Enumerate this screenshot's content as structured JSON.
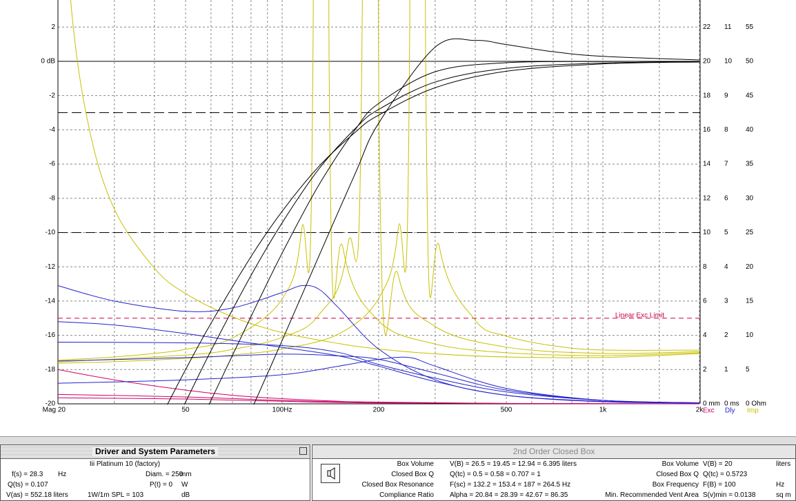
{
  "chart_data": {
    "type": "line",
    "xscale": "log",
    "xlim": [
      20,
      2000
    ],
    "xticks": [
      {
        "value": 20,
        "label": "Mag 20"
      },
      50,
      {
        "value": 100,
        "label": "100Hz"
      },
      200,
      500,
      {
        "value": 1000,
        "label": "1k"
      },
      {
        "value": 2000,
        "label": "2k"
      }
    ],
    "xminor": [
      30,
      40,
      60,
      70,
      80,
      90,
      300,
      400,
      600,
      700,
      800,
      900,
      1500
    ],
    "ylim": [
      -20,
      3.58
    ],
    "yticks": [
      -20,
      -18,
      -16,
      -14,
      -12,
      -10,
      -8,
      -6,
      -4,
      -2,
      {
        "value": 0,
        "label": "0 dB"
      },
      2
    ],
    "y2lim": [
      0,
      23.58
    ],
    "y2ticks": [
      {
        "value": 0,
        "label": "0 mm"
      },
      2,
      4,
      6,
      8,
      10,
      12,
      14,
      16,
      18,
      20,
      22
    ],
    "y3lim": [
      0,
      11.79
    ],
    "y3ticks": [
      {
        "value": 0,
        "label": "0 ms"
      },
      1,
      2,
      3,
      4,
      5,
      6,
      7,
      8,
      9,
      10,
      11
    ],
    "y4lim": [
      0,
      58.95
    ],
    "y4ticks": [
      {
        "value": 0,
        "label": "0 Ohm"
      },
      5,
      10,
      15,
      20,
      25,
      30,
      35,
      40,
      45,
      50,
      55
    ],
    "grid": true,
    "hlines": [
      {
        "value": 0,
        "style": "solid"
      },
      {
        "value": -3,
        "style": "dash"
      },
      {
        "value": -10,
        "style": "dash"
      }
    ],
    "exc_limit": {
      "value": 5,
      "axis": "y2",
      "label": "Linear Exc Limit",
      "color": "#cc0044"
    },
    "legend": [
      {
        "label": "Exc",
        "color": "#cc0066"
      },
      {
        "label": "Dly",
        "color": "#2222cc"
      },
      {
        "label": "Imp",
        "color": "#c8c000"
      }
    ],
    "series": [
      {
        "axis": "y",
        "color": "#000000",
        "x": [
          40,
          50,
          60,
          80,
          100,
          130,
          170,
          200,
          300,
          500,
          1000,
          2000
        ],
        "values": [
          -21.5,
          -18.0,
          -15.3,
          -11.4,
          -8.76,
          -6.15,
          -4.1,
          -3.14,
          -1.54,
          -0.58,
          -0.15,
          -0.04
        ]
      },
      {
        "axis": "y",
        "color": "#000000",
        "x": [
          45,
          50,
          60,
          80,
          100,
          130,
          170,
          200,
          300,
          500,
          1000,
          2000
        ],
        "values": [
          -21.6,
          -19.9,
          -16.9,
          -12.5,
          -9.43,
          -6.3,
          -3.88,
          -2.81,
          -1.21,
          -0.41,
          -0.1,
          -0.02
        ]
      },
      {
        "axis": "y",
        "color": "#000000",
        "x": [
          50,
          60,
          80,
          100,
          130,
          170,
          200,
          300,
          500,
          1000,
          2000
        ],
        "values": [
          -22.9,
          -19.8,
          -14.9,
          -11.2,
          -7.24,
          -3.92,
          -2.46,
          -0.61,
          -0.08,
          -0.01,
          0
        ]
      },
      {
        "axis": "y",
        "color": "#000000",
        "x": [
          75,
          80,
          100,
          130,
          170,
          200,
          300,
          400,
          500,
          700,
          1000,
          2000
        ],
        "values": [
          -21.5,
          -20.4,
          -16.3,
          -11.4,
          -6.44,
          -3.61,
          0.83,
          1.22,
          0.98,
          0.56,
          0.29,
          0.08
        ]
      },
      {
        "axis": "y4",
        "color": "#c8c000",
        "x": [
          20,
          22,
          25,
          30,
          40,
          50,
          70,
          100,
          150,
          200,
          300,
          500,
          1000,
          2000
        ],
        "values": [
          88.3,
          58,
          40.3,
          28.4,
          19.8,
          16.1,
          12.7,
          10.4,
          8.8,
          8.0,
          7.3,
          6.84,
          6.77,
          7.33
        ]
      },
      {
        "axis": "y4",
        "color": "#c8c000",
        "x": [
          20,
          30,
          40,
          50,
          70,
          100,
          115,
          125,
          132,
          140,
          155,
          200,
          300,
          500,
          1000,
          2000
        ],
        "values": [
          6.37,
          6.84,
          7.36,
          7.96,
          9.6,
          15.3,
          25.4,
          55.6,
          405.6,
          51.6,
          22.6,
          12.1,
          8.74,
          7.46,
          7.04,
          7.46
        ]
      },
      {
        "axis": "y4",
        "color": "#c8c000",
        "x": [
          20,
          50,
          70,
          100,
          130,
          160,
          178,
          187,
          200,
          230,
          300,
          500,
          1000,
          2000
        ],
        "values": [
          6.11,
          7.12,
          7.94,
          9.7,
          12.95,
          23.0,
          60.4,
          405.6,
          46.1,
          18.8,
          11.3,
          8.28,
          7.36,
          7.62
        ]
      },
      {
        "axis": "y4",
        "color": "#c8c000",
        "x": [
          20,
          30,
          50,
          70,
          100,
          150,
          200,
          230,
          250,
          264,
          280,
          310,
          400,
          500,
          700,
          1000,
          2000
        ],
        "values": [
          5.94,
          6.15,
          6.62,
          7.12,
          8.0,
          10.2,
          15.4,
          25.5,
          55.7,
          405.7,
          51.7,
          22.7,
          12.2,
          9.9,
          8.47,
          7.86,
          7.84
        ]
      },
      {
        "axis": "y3",
        "color": "#2222cc",
        "x": [
          20,
          30,
          50,
          70,
          100,
          115,
          130,
          150,
          200,
          300,
          500,
          1000,
          2000
        ],
        "values": [
          3.45,
          3.0,
          2.7,
          2.8,
          3.25,
          3.45,
          3.35,
          2.8,
          1.6,
          0.7,
          0.25,
          0.06,
          0.02
        ]
      },
      {
        "axis": "y3",
        "color": "#2222cc",
        "x": [
          20,
          30,
          50,
          70,
          100,
          150,
          200,
          300,
          500,
          1000,
          2000
        ],
        "values": [
          2.4,
          2.3,
          2.05,
          1.85,
          1.65,
          1.4,
          1.1,
          0.65,
          0.25,
          0.07,
          0.02
        ]
      },
      {
        "axis": "y3",
        "color": "#2222cc",
        "x": [
          20,
          50,
          100,
          150,
          200,
          300,
          500,
          1000,
          2000
        ],
        "values": [
          1.8,
          1.78,
          1.7,
          1.5,
          1.15,
          0.75,
          0.35,
          0.1,
          0.03
        ]
      },
      {
        "axis": "y3",
        "color": "#2222cc",
        "x": [
          20,
          50,
          100,
          150,
          200,
          300,
          500,
          1000,
          2000
        ],
        "values": [
          1.25,
          1.35,
          1.45,
          1.4,
          1.3,
          0.9,
          0.4,
          0.1,
          0.03
        ]
      },
      {
        "axis": "y3",
        "color": "#2222cc",
        "x": [
          20,
          50,
          100,
          150,
          200,
          250,
          300,
          500,
          1000,
          2000
        ],
        "values": [
          0.6,
          0.7,
          0.85,
          1.1,
          1.3,
          1.35,
          1.1,
          0.45,
          0.1,
          0.03
        ]
      },
      {
        "axis": "y2",
        "color": "#cc0066",
        "x": [
          20,
          30,
          50,
          70,
          100,
          150,
          200,
          500,
          2000
        ],
        "values": [
          2.0,
          1.4,
          0.8,
          0.5,
          0.3,
          0.15,
          0.1,
          0.02,
          0
        ]
      },
      {
        "axis": "y2",
        "color": "#cc0066",
        "x": [
          20,
          50,
          100,
          200,
          500,
          2000
        ],
        "values": [
          0.55,
          0.4,
          0.2,
          0.08,
          0.02,
          0
        ]
      },
      {
        "axis": "y2",
        "color": "#cc0066",
        "x": [
          20,
          50,
          100,
          200,
          2000
        ],
        "values": [
          0.35,
          0.28,
          0.15,
          0.05,
          0
        ]
      }
    ]
  },
  "driver_panel": {
    "title": "Driver and System Parameters",
    "driver": "Iii Platinum 10 (factory)",
    "rows": [
      [
        "f(s) = 28.3",
        "Hz",
        "Diam. = 250",
        "mm"
      ],
      [
        "Q(ts) = 0.107",
        "P(t) = 0",
        "W"
      ],
      [
        "V(as) = 552.18 liters",
        "1W/1m SPL = 103",
        "dB"
      ]
    ]
  },
  "box_panel": {
    "title": "2nd Order Closed Box",
    "rows": [
      {
        "label": "Box Volume",
        "value": "V(B) = 26.5  = 19.45  = 12.94  = 6.395  liters"
      },
      {
        "label": "Closed Box Q",
        "value": "Q(tc) = 0.5  = 0.58  = 0.707  = 1"
      },
      {
        "label": "Closed Box Resonance",
        "value": "F(sc) = 132.2  = 153.4  = 187  = 264.5  Hz"
      },
      {
        "label": "Compliance Ratio",
        "value": "Alpha = 20.84  = 28.39  = 42.67  = 86.35"
      }
    ],
    "vent": [
      {
        "label": "Box Volume",
        "value": "V(B) = 20",
        "unit": "liters"
      },
      {
        "label": "Closed Box Q",
        "value": "Q(tc) = 0.5723"
      },
      {
        "label": "Box Frequency",
        "value": "F(B) = 100",
        "unit": "Hz"
      },
      {
        "label": "Min. Recommended Vent Area",
        "value": "S(v)min = 0.0138",
        "unit": "sq m"
      }
    ]
  }
}
